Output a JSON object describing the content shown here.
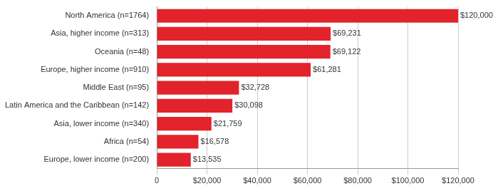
{
  "chart_data": {
    "type": "bar",
    "orientation": "horizontal",
    "categories": [
      "North America (n=1764)",
      "Asia, higher income (n=313)",
      "Oceania (n=48)",
      "Europe, higher income (n=910)",
      "Middle East (n=95)",
      "Latin America and the Caribbean (n=142)",
      "Asia, lower income (n=340)",
      "Africa (n=54)",
      "Europe, lower income (n=200)"
    ],
    "values": [
      120000,
      69231,
      69122,
      61281,
      32728,
      30098,
      21759,
      16578,
      13535
    ],
    "value_labels": [
      "$120,000",
      "$69,231",
      "$69,122",
      "$61,281",
      "$32,728",
      "$30,098",
      "$21,759",
      "$16,578",
      "$13,535"
    ],
    "color": "#e3232b",
    "xlim": [
      0,
      120000
    ],
    "xticks": [
      0,
      {
        "value": 20000,
        "label": "$20,000"
      },
      {
        "value": 40000,
        "label": "$40,000"
      },
      {
        "value": 60000,
        "label": "$60,000"
      },
      {
        "value": 80000,
        "label": "$80,000"
      },
      {
        "value": 100000,
        "label": "$100,000"
      },
      {
        "value": 120000,
        "label": "$120,000"
      }
    ],
    "grid": true,
    "data_labels": true
  }
}
